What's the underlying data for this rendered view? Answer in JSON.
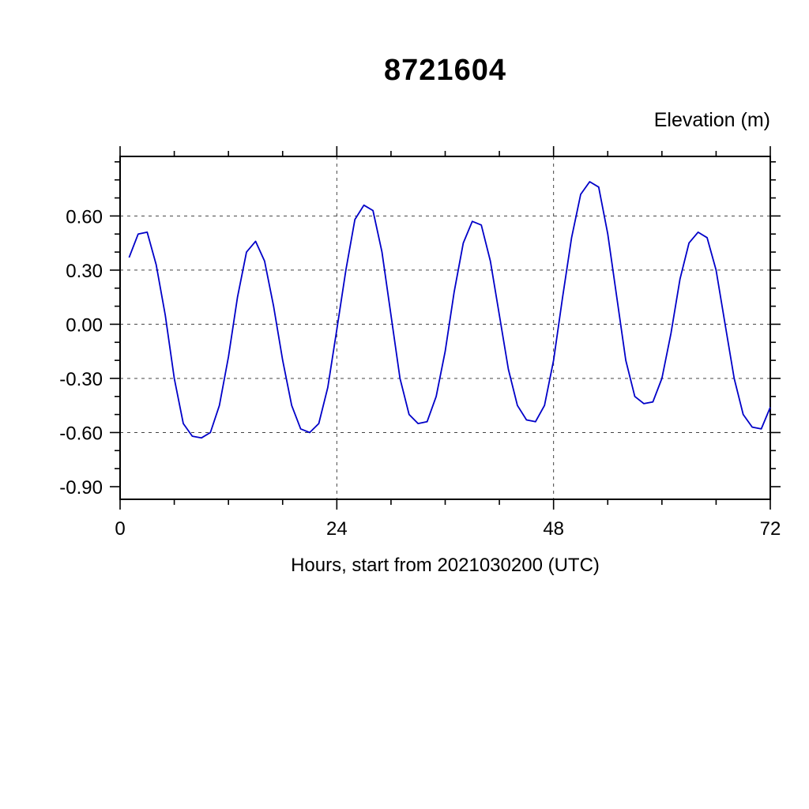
{
  "title": "8721604",
  "ylabel_right": "Elevation (m)",
  "xlabel": "Hours, start from 2021030200 (UTC)",
  "chart_data": {
    "type": "line",
    "title": "8721604",
    "xlabel": "Hours, start from 2021030200 (UTC)",
    "ylabel": "Elevation (m)",
    "line_color": "#0000C8",
    "grid": true,
    "xlim": [
      0,
      72
    ],
    "ylim": [
      -0.97,
      0.93
    ],
    "xticks": [
      0,
      24,
      48,
      72
    ],
    "xtick_labels": [
      "0",
      "24",
      "48",
      "72"
    ],
    "yticks": [
      0.6,
      0.3,
      0.0,
      -0.3,
      -0.6,
      -0.9
    ],
    "ytick_labels": [
      "0.60",
      "0.30",
      "0.00",
      "-0.30",
      "-0.60",
      "-0.90"
    ],
    "grid_x": [
      24,
      48
    ],
    "grid_y": [
      0.6,
      0.3,
      0.0,
      -0.3,
      -0.6
    ],
    "x_minor_step": 6,
    "y_minor_step": 0.1,
    "x": [
      1,
      2,
      3,
      4,
      5,
      6,
      7,
      8,
      9,
      10,
      11,
      12,
      13,
      14,
      15,
      16,
      17,
      18,
      19,
      20,
      21,
      22,
      23,
      24,
      25,
      26,
      27,
      28,
      29,
      30,
      31,
      32,
      33,
      34,
      35,
      36,
      37,
      38,
      39,
      40,
      41,
      42,
      43,
      44,
      45,
      46,
      47,
      48,
      49,
      50,
      51,
      52,
      53,
      54,
      55,
      56,
      57,
      58,
      59,
      60,
      61,
      62,
      63,
      64,
      65,
      66,
      67,
      68,
      69,
      70,
      71,
      72
    ],
    "y": [
      0.37,
      0.5,
      0.51,
      0.33,
      0.05,
      -0.3,
      -0.55,
      -0.62,
      -0.63,
      -0.6,
      -0.45,
      -0.18,
      0.15,
      0.4,
      0.46,
      0.35,
      0.1,
      -0.2,
      -0.45,
      -0.58,
      -0.6,
      -0.55,
      -0.35,
      -0.03,
      0.3,
      0.58,
      0.66,
      0.63,
      0.4,
      0.05,
      -0.3,
      -0.5,
      -0.55,
      -0.54,
      -0.4,
      -0.15,
      0.18,
      0.45,
      0.57,
      0.55,
      0.35,
      0.05,
      -0.25,
      -0.45,
      -0.53,
      -0.54,
      -0.45,
      -0.2,
      0.15,
      0.48,
      0.72,
      0.79,
      0.76,
      0.5,
      0.15,
      -0.2,
      -0.4,
      -0.44,
      -0.43,
      -0.3,
      -0.05,
      0.25,
      0.45,
      0.51,
      0.48,
      0.3,
      0.0,
      -0.3,
      -0.5,
      -0.57,
      -0.58,
      -0.46
    ]
  }
}
